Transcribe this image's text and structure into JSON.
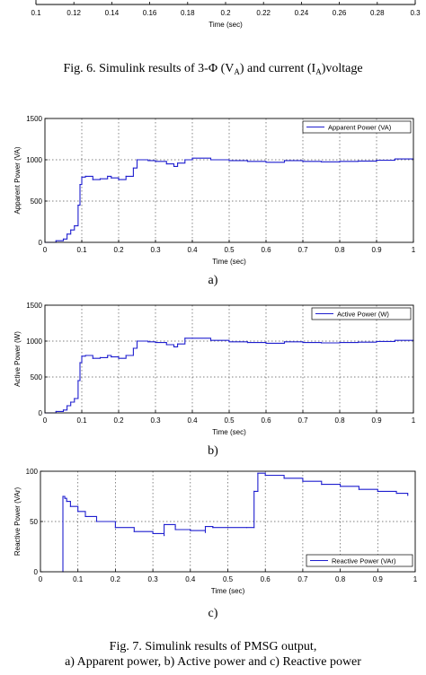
{
  "fig6": {
    "ticks": [
      "0.1",
      "0.12",
      "0.14",
      "0.16",
      "0.18",
      "0.2",
      "0.22",
      "0.24",
      "0.26",
      "0.28",
      "0.3"
    ],
    "xlabel": "Time (sec)",
    "caption": {
      "prefix": "Fig. 6.  Simulink results of 3-Φ (V",
      "sub1": "A",
      "mid": ") and current (I",
      "sub2": "A",
      "suffix": ")voltage"
    }
  },
  "fig7_caption": {
    "line1": "Fig. 7.  Simulink results of PMSG output,",
    "line2": "a) Apparent power, b) Active power and c) Reactive power"
  },
  "chart_data": [
    {
      "type": "line",
      "panel": "a)",
      "xlabel": "Time (sec)",
      "ylabel": "Apparent Power (VA)",
      "xlim": [
        0,
        1
      ],
      "ylim": [
        0,
        1500
      ],
      "xticks": [
        "0",
        "0.1",
        "0.2",
        "0.3",
        "0.4",
        "0.5",
        "0.6",
        "0.7",
        "0.8",
        "0.9",
        "1"
      ],
      "yticks": [
        "0",
        "500",
        "1000",
        "1500"
      ],
      "grid": true,
      "legend_position": "top-right",
      "series": [
        {
          "name": "Apparent Power (VA)",
          "color": "#1f1fcf",
          "x": [
            0,
            0.03,
            0.05,
            0.06,
            0.07,
            0.08,
            0.09,
            0.095,
            0.1,
            0.11,
            0.13,
            0.15,
            0.17,
            0.18,
            0.2,
            0.22,
            0.24,
            0.25,
            0.28,
            0.3,
            0.33,
            0.35,
            0.36,
            0.38,
            0.4,
            0.45,
            0.5,
            0.55,
            0.6,
            0.65,
            0.7,
            0.75,
            0.8,
            0.85,
            0.9,
            0.95,
            1.0
          ],
          "y": [
            0,
            20,
            40,
            100,
            150,
            200,
            450,
            700,
            790,
            800,
            760,
            770,
            800,
            780,
            760,
            800,
            900,
            1000,
            990,
            980,
            950,
            920,
            960,
            1000,
            1020,
            1000,
            990,
            980,
            970,
            990,
            980,
            975,
            980,
            985,
            995,
            1010,
            1010
          ]
        }
      ]
    },
    {
      "type": "line",
      "panel": "b)",
      "xlabel": "Time (sec)",
      "ylabel": "Active Power (W)",
      "xlim": [
        0,
        1
      ],
      "ylim": [
        0,
        1500
      ],
      "xticks": [
        "0",
        "0.1",
        "0.2",
        "0.3",
        "0.4",
        "0.5",
        "0.6",
        "0.7",
        "0.8",
        "0.9",
        "1"
      ],
      "yticks": [
        "0",
        "500",
        "1000",
        "1500"
      ],
      "grid": true,
      "legend_position": "top-right",
      "series": [
        {
          "name": "Active Power (W)",
          "color": "#1f1fcf",
          "x": [
            0,
            0.03,
            0.05,
            0.06,
            0.07,
            0.08,
            0.09,
            0.095,
            0.1,
            0.11,
            0.13,
            0.15,
            0.17,
            0.18,
            0.2,
            0.22,
            0.24,
            0.25,
            0.28,
            0.3,
            0.33,
            0.35,
            0.36,
            0.38,
            0.4,
            0.45,
            0.5,
            0.55,
            0.6,
            0.65,
            0.7,
            0.75,
            0.8,
            0.85,
            0.9,
            0.95,
            1.0
          ],
          "y": [
            0,
            20,
            40,
            100,
            150,
            200,
            450,
            700,
            790,
            800,
            760,
            770,
            800,
            780,
            760,
            800,
            900,
            1000,
            990,
            980,
            950,
            920,
            960,
            1040,
            1040,
            1010,
            990,
            980,
            970,
            990,
            980,
            975,
            980,
            985,
            995,
            1010,
            1010
          ]
        }
      ]
    },
    {
      "type": "line",
      "panel": "c)",
      "xlabel": "Time (sec)",
      "ylabel": "Reactive Power (VAr)",
      "xlim": [
        0,
        1
      ],
      "ylim": [
        0,
        100
      ],
      "xticks": [
        "0",
        "0.1",
        "0.2",
        "0.3",
        "0.4",
        "0.5",
        "0.6",
        "0.7",
        "0.8",
        "0.9",
        "1"
      ],
      "yticks": [
        "0",
        "50",
        "100"
      ],
      "grid": true,
      "legend_position": "bottom-right",
      "series": [
        {
          "name": "Reactive Power (VAr)",
          "color": "#1f1fcf",
          "x": [
            0.06,
            0.06,
            0.065,
            0.07,
            0.08,
            0.1,
            0.12,
            0.15,
            0.2,
            0.25,
            0.3,
            0.33,
            0.33,
            0.36,
            0.36,
            0.4,
            0.44,
            0.44,
            0.46,
            0.46,
            0.5,
            0.55,
            0.57,
            0.57,
            0.58,
            0.58,
            0.6,
            0.65,
            0.7,
            0.75,
            0.8,
            0.85,
            0.9,
            0.95,
            0.98
          ],
          "y": [
            0,
            75,
            73,
            70,
            65,
            60,
            55,
            50,
            44,
            40,
            38,
            36,
            47,
            45,
            42,
            41,
            39,
            45,
            45,
            44,
            44,
            44,
            44,
            80,
            80,
            98,
            96,
            93,
            90,
            87,
            85,
            82,
            80,
            78,
            76
          ]
        }
      ]
    }
  ]
}
